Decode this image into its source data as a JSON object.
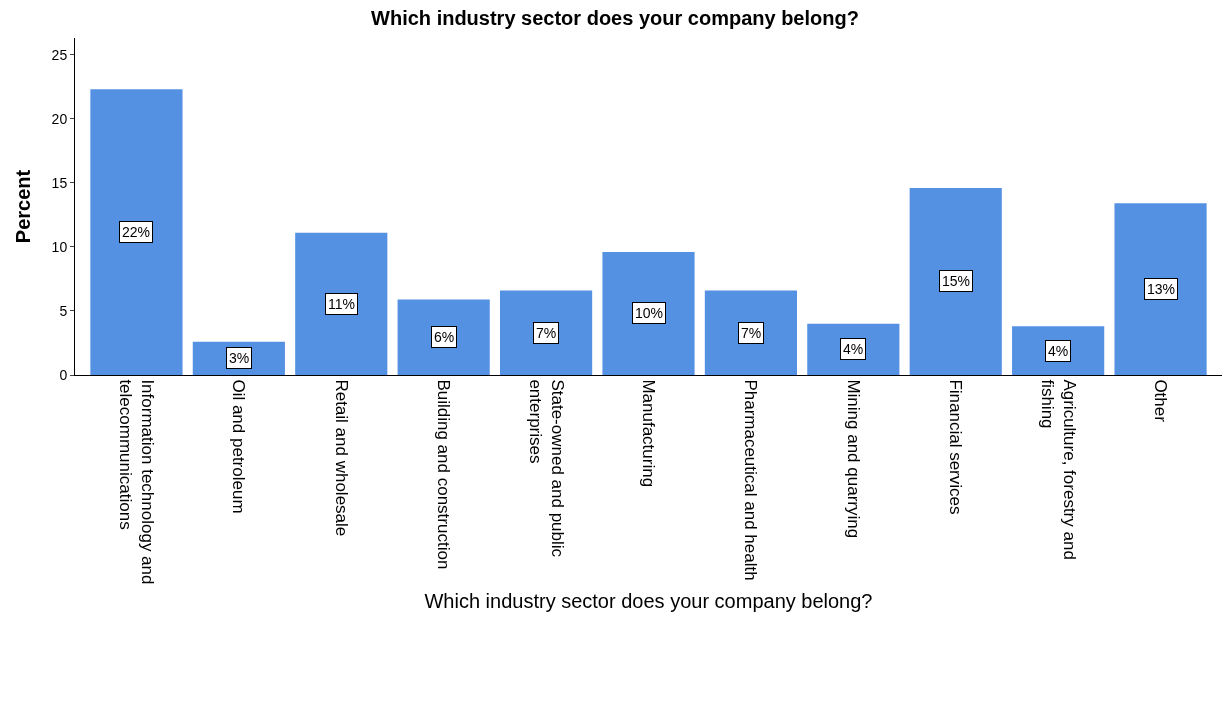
{
  "chart_data": {
    "type": "bar",
    "title": "Which industry sector does your company belong?",
    "xlabel": "Which industry sector does your company belong?",
    "ylabel": "Percent",
    "categories": [
      "Information technology and telecommunications",
      "Oil and petroleum",
      "Retail and wholesale",
      "Building and construction",
      "State-owned and public enterprises",
      "Manufacturing",
      "Pharmaceutical and health",
      "Mining and quarrying",
      "Financial services",
      "Agriculture, forestry and fishing",
      "Other"
    ],
    "values": [
      22.3,
      2.6,
      11.1,
      5.9,
      6.6,
      9.6,
      6.6,
      4.0,
      14.6,
      3.8,
      13.4
    ],
    "value_labels": [
      "22%",
      "3%",
      "11%",
      "6%",
      "7%",
      "10%",
      "7%",
      "4%",
      "15%",
      "4%",
      "13%"
    ],
    "color": "#5591e3",
    "ylim": [
      0,
      26.3
    ],
    "yticks": [
      0,
      5,
      10,
      15,
      20,
      25
    ]
  }
}
